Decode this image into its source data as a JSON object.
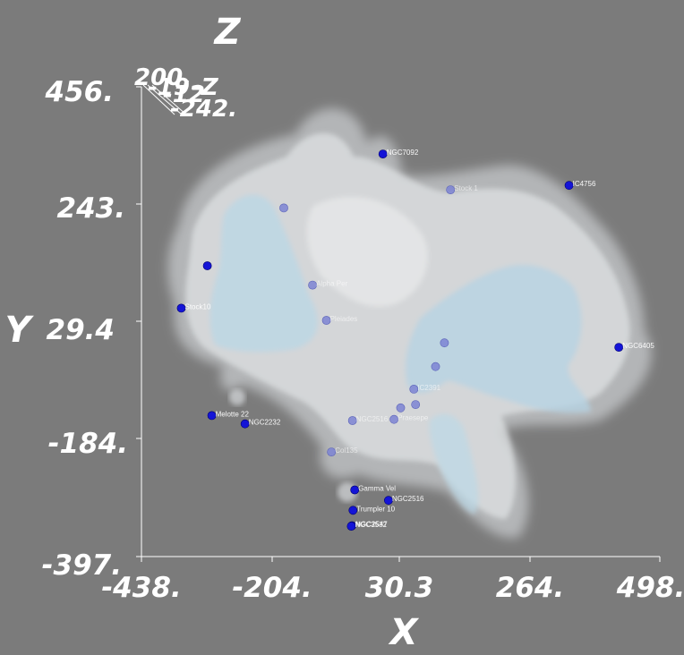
{
  "chart_data": {
    "type": "scatter",
    "title": "",
    "xlabel": "X",
    "ylabel": "Y",
    "zlabel": "Z",
    "xlim": [
      -438,
      498
    ],
    "ylim": [
      -397,
      456
    ],
    "x_ticks": [
      "-438.",
      "-204.",
      "30.3",
      "264.",
      "498."
    ],
    "y_ticks": [
      "456.",
      "243.",
      "29.4",
      "-184.",
      "-397."
    ],
    "mini_axis_labels": [
      "200.",
      "-19",
      "-12",
      "-Z",
      "-242."
    ],
    "colors": {
      "background": "#7b7b7b",
      "point": "#1414d6",
      "point_faded": "#7c84d4",
      "density_outer": "#e7ebee",
      "density_inner": "#b8d6e6"
    },
    "points": [
      {
        "name": "NGC7092",
        "x": -2,
        "y": 334,
        "faded": false
      },
      {
        "name": "Stock 1",
        "x": 120,
        "y": 269,
        "faded": true
      },
      {
        "name": "IC4756",
        "x": 334,
        "y": 277,
        "faded": false
      },
      {
        "name": "",
        "x": -181,
        "y": 236,
        "faded": true
      },
      {
        "name": "",
        "x": -319,
        "y": 131,
        "faded": false
      },
      {
        "name": "Alpha Per",
        "x": -129,
        "y": 96,
        "faded": true
      },
      {
        "name": "Stock10",
        "x": -366,
        "y": 54,
        "faded": false
      },
      {
        "name": "Pleiades",
        "x": -104,
        "y": 32,
        "faded": true
      },
      {
        "name": "",
        "x": 109,
        "y": -9,
        "faded": true
      },
      {
        "name": "NGC6405",
        "x": 424,
        "y": -17,
        "faded": false
      },
      {
        "name": "",
        "x": 93,
        "y": -52,
        "faded": true
      },
      {
        "name": "IC2391",
        "x": 54,
        "y": -93,
        "faded": true
      },
      {
        "name": "",
        "x": 57,
        "y": -121,
        "faded": true
      },
      {
        "name": "",
        "x": 30,
        "y": -127,
        "faded": true
      },
      {
        "name": "Praesepe",
        "x": 18,
        "y": -148,
        "faded": true
      },
      {
        "name": "NGC2516",
        "x": -57,
        "y": -150,
        "faded": true
      },
      {
        "name": "Melotte 22",
        "x": -311,
        "y": -141,
        "faded": false
      },
      {
        "name": "NGC2232",
        "x": -251,
        "y": -156,
        "faded": false
      },
      {
        "name": "Col135",
        "x": -95,
        "y": -207,
        "faded": true
      },
      {
        "name": "Gamma Vel",
        "x": -53,
        "y": -276,
        "faded": false
      },
      {
        "name": "NGC2516",
        "x": 8,
        "y": -295,
        "faded": false
      },
      {
        "name": "Trumpler 10",
        "x": -56,
        "y": -313,
        "faded": false
      },
      {
        "name": "NGC2547",
        "x": -58,
        "y": -341,
        "faded": false
      },
      {
        "name": "NGC3532",
        "x": -59,
        "y": -342,
        "faded": false
      }
    ]
  }
}
